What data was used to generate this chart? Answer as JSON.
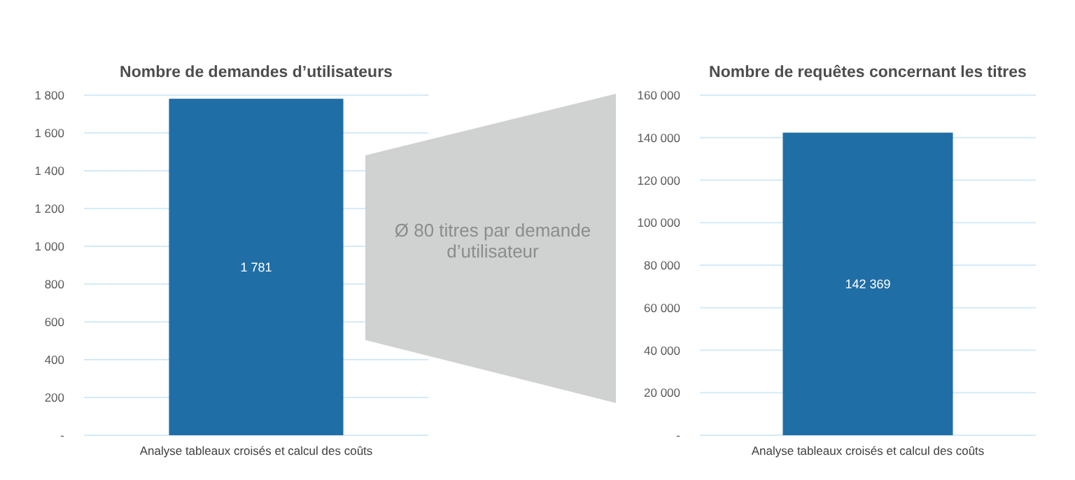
{
  "chart_data": [
    {
      "type": "bar",
      "title": "Nombre de demandes d’utilisateurs",
      "categories": [
        "Analyse tableaux croisés et calcul des coûts"
      ],
      "values": [
        1781
      ],
      "value_labels": [
        "1 781"
      ],
      "color": "#206ea6",
      "ylim": [
        0,
        1800
      ],
      "yticks": [
        {
          "value": 0,
          "label": "-"
        },
        {
          "value": 200,
          "label": "200"
        },
        {
          "value": 400,
          "label": "400"
        },
        {
          "value": 600,
          "label": "600"
        },
        {
          "value": 800,
          "label": "800"
        },
        {
          "value": 1000,
          "label": "1 000"
        },
        {
          "value": 1200,
          "label": "1 200"
        },
        {
          "value": 1400,
          "label": "1 400"
        },
        {
          "value": 1600,
          "label": "1 600"
        },
        {
          "value": 1800,
          "label": "1 800"
        }
      ],
      "grid": "y"
    },
    {
      "type": "other",
      "annotations": [
        "Ø 80 titres par demande d’utilisateur"
      ]
    },
    {
      "type": "bar",
      "title": "Nombre de requêtes concernant les titres",
      "categories": [
        "Analyse tableaux croisés et calcul des coûts"
      ],
      "values": [
        142369
      ],
      "value_labels": [
        "142 369"
      ],
      "color": "#206ea6",
      "ylim": [
        0,
        160000
      ],
      "yticks": [
        {
          "value": 0,
          "label": "-"
        },
        {
          "value": 20000,
          "label": "20 000"
        },
        {
          "value": 40000,
          "label": "40 000"
        },
        {
          "value": 60000,
          "label": "60 000"
        },
        {
          "value": 80000,
          "label": "80 000"
        },
        {
          "value": 100000,
          "label": "100 000"
        },
        {
          "value": 120000,
          "label": "120 000"
        },
        {
          "value": 140000,
          "label": "140 000"
        },
        {
          "value": 160000,
          "label": "160 000"
        }
      ],
      "grid": "y"
    }
  ]
}
